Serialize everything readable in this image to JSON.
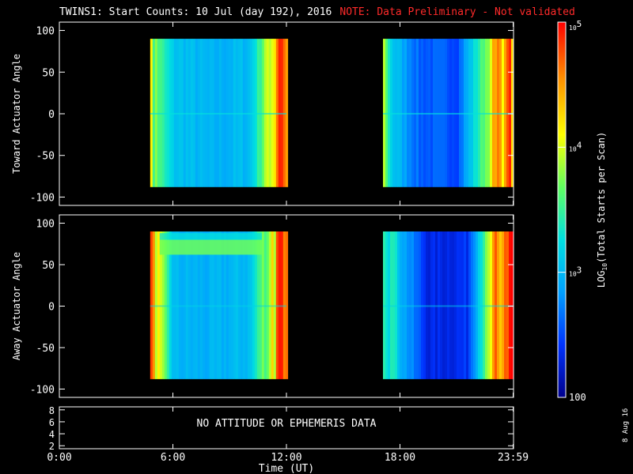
{
  "title": {
    "main": "TWINS1: Start Counts: 10 Jul (day 192), 2016",
    "note": "NOTE: Data Preliminary - Not validated"
  },
  "date_stamp": "8 Aug 16",
  "colors": {
    "background": "#000000",
    "axes": "#ffffff",
    "note": "#ff2a2a",
    "colormap": [
      "#00008c",
      "#0033ff",
      "#00a0ff",
      "#00e0e0",
      "#60ff60",
      "#ffff00",
      "#ff9000",
      "#ff0000"
    ]
  },
  "chart_data": [
    {
      "type": "heatmap",
      "panel": "top",
      "ylabel": "Toward Actuator Angle",
      "ylim": [
        -110,
        110
      ],
      "yticks": [
        100,
        50,
        0,
        -50,
        -100
      ],
      "xlim": [
        0,
        24
      ],
      "data_extent_y": [
        -88,
        90
      ],
      "data_intervals_ut": [
        [
          4.8,
          12.0
        ],
        [
          17.1,
          23.98
        ]
      ],
      "notes": "approximate log10 start counts per scan; blue ~2.5, cyan ~3.0, yellow ~3.8, red ~4.8",
      "samples": [
        {
          "x": 4.9,
          "log10": 3.9
        },
        {
          "x": 5.2,
          "log10": 3.6
        },
        {
          "x": 6.0,
          "log10": 3.1
        },
        {
          "x": 8.0,
          "log10": 2.95
        },
        {
          "x": 10.0,
          "log10": 3.05
        },
        {
          "x": 10.9,
          "log10": 3.9
        },
        {
          "x": 11.5,
          "log10": 4.6
        },
        {
          "x": 17.2,
          "log10": 3.5
        },
        {
          "x": 17.6,
          "log10": 3.1
        },
        {
          "x": 19.0,
          "log10": 2.6
        },
        {
          "x": 21.0,
          "log10": 2.55
        },
        {
          "x": 23.0,
          "log10": 4.2
        },
        {
          "x": 23.8,
          "log10": 4.7
        }
      ]
    },
    {
      "type": "heatmap",
      "panel": "middle",
      "ylabel": "Away Actuator Angle",
      "ylim": [
        -110,
        110
      ],
      "yticks": [
        100,
        50,
        0,
        -50,
        -100
      ],
      "xlim": [
        0,
        24
      ],
      "data_extent_y": [
        -88,
        90
      ],
      "data_intervals_ut": [
        [
          4.8,
          12.0
        ],
        [
          17.1,
          23.98
        ]
      ],
      "notes": "bright yellow band near +70 deg in first interval",
      "samples": [
        {
          "x": 4.9,
          "log10": 4.5
        },
        {
          "x": 6.0,
          "log10": 3.0
        },
        {
          "x": 8.0,
          "log10": 2.95
        },
        {
          "x": 10.0,
          "log10": 3.05
        },
        {
          "x": 11.5,
          "log10": 4.5
        },
        {
          "x": 17.2,
          "log10": 3.8
        },
        {
          "x": 18.0,
          "log10": 3.0
        },
        {
          "x": 19.5,
          "log10": 2.3
        },
        {
          "x": 21.5,
          "log10": 2.4
        },
        {
          "x": 23.0,
          "log10": 4.4
        },
        {
          "x": 23.8,
          "log10": 4.6
        }
      ]
    },
    {
      "type": "line",
      "panel": "bottom",
      "message": "NO ATTITUDE OR EPHEMERIS DATA",
      "ylim": [
        1.5,
        8.5
      ],
      "yticks": [
        8,
        6,
        4,
        2
      ],
      "xlim": [
        0,
        24
      ],
      "xlabel": "Time (UT)",
      "xticks": [
        {
          "value": 0,
          "label": "0:00"
        },
        {
          "value": 6,
          "label": "6:00"
        },
        {
          "value": 12,
          "label": "12:00"
        },
        {
          "value": 18,
          "label": "18:00"
        },
        {
          "value": 23.98,
          "label": "23:59"
        }
      ]
    }
  ],
  "colorbar": {
    "label_prefix": "LOG",
    "label_sub": "10",
    "label_rest": "(Total Starts per Scan)",
    "range_log10": [
      2,
      5
    ],
    "tick_labels": [
      {
        "value": 5,
        "base": "10",
        "exp": "5"
      },
      {
        "value": 4,
        "base": "10",
        "exp": "4"
      },
      {
        "value": 3,
        "base": "10",
        "exp": "3"
      },
      {
        "value": 2,
        "plain": "100"
      }
    ]
  }
}
